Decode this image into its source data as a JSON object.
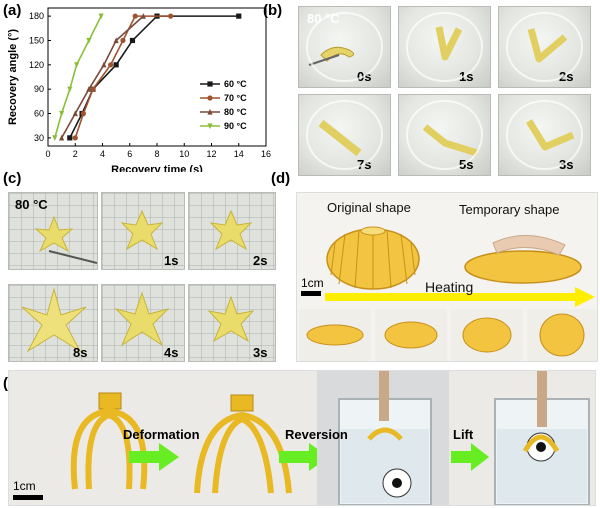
{
  "panels": {
    "a": {
      "label": "(a)"
    },
    "b": {
      "label": "(b)",
      "temperature": "80  °C",
      "times": [
        "0s",
        "1s",
        "2s",
        "7s",
        "5s",
        "3s"
      ]
    },
    "c": {
      "label": "(c)",
      "temperature": "80  °C",
      "times": [
        "1s",
        "2s",
        "8s",
        "4s",
        "3s"
      ]
    },
    "d": {
      "label": "(d)",
      "original": "Original shape",
      "temporary": "Temporary shape",
      "scale": "1cm",
      "heating": "Heating"
    },
    "e": {
      "label": "(e)",
      "step1": "Deformation",
      "step2": "Reversion",
      "step3": "Lift",
      "scale": "1cm"
    }
  },
  "colors": {
    "yellow_part": "#e8b923",
    "arrow_yellow": "#ffee00",
    "arrow_green": "#66ee22"
  },
  "chart_data": {
    "type": "line",
    "xlabel": "Recovery time (s)",
    "ylabel": "Recovery angle (°)",
    "xlim": [
      0,
      16
    ],
    "ylim": [
      20,
      190
    ],
    "xticks": [
      "0",
      "2",
      "4",
      "6",
      "8",
      "10",
      "12",
      "14",
      "16"
    ],
    "yticks": [
      "30",
      "60",
      "90",
      "120",
      "150",
      "180"
    ],
    "legend_position": "right",
    "series": [
      {
        "name": "60 °C",
        "color": "#1a1a1a",
        "marker": "square",
        "x": [
          1.6,
          2.5,
          3.3,
          5.0,
          6.2,
          8.0,
          14.0
        ],
        "y": [
          30,
          60,
          90,
          120,
          150,
          180,
          180
        ]
      },
      {
        "name": "70 °C",
        "color": "#a0522d",
        "marker": "circle",
        "x": [
          2.0,
          2.6,
          3.3,
          4.6,
          5.5,
          6.4,
          9.0
        ],
        "y": [
          30,
          60,
          90,
          120,
          150,
          180,
          180
        ]
      },
      {
        "name": "80 °C",
        "color": "#7a4a3a",
        "marker": "triangle",
        "x": [
          1.0,
          2.0,
          3.0,
          4.1,
          5.0,
          7.0
        ],
        "y": [
          30,
          60,
          90,
          120,
          150,
          180
        ]
      },
      {
        "name": "90 °C",
        "color": "#8bbf3a",
        "marker": "triangle-down",
        "x": [
          0.5,
          1.0,
          1.6,
          2.1,
          3.0,
          3.9
        ],
        "y": [
          30,
          60,
          90,
          120,
          150,
          180
        ]
      }
    ]
  }
}
